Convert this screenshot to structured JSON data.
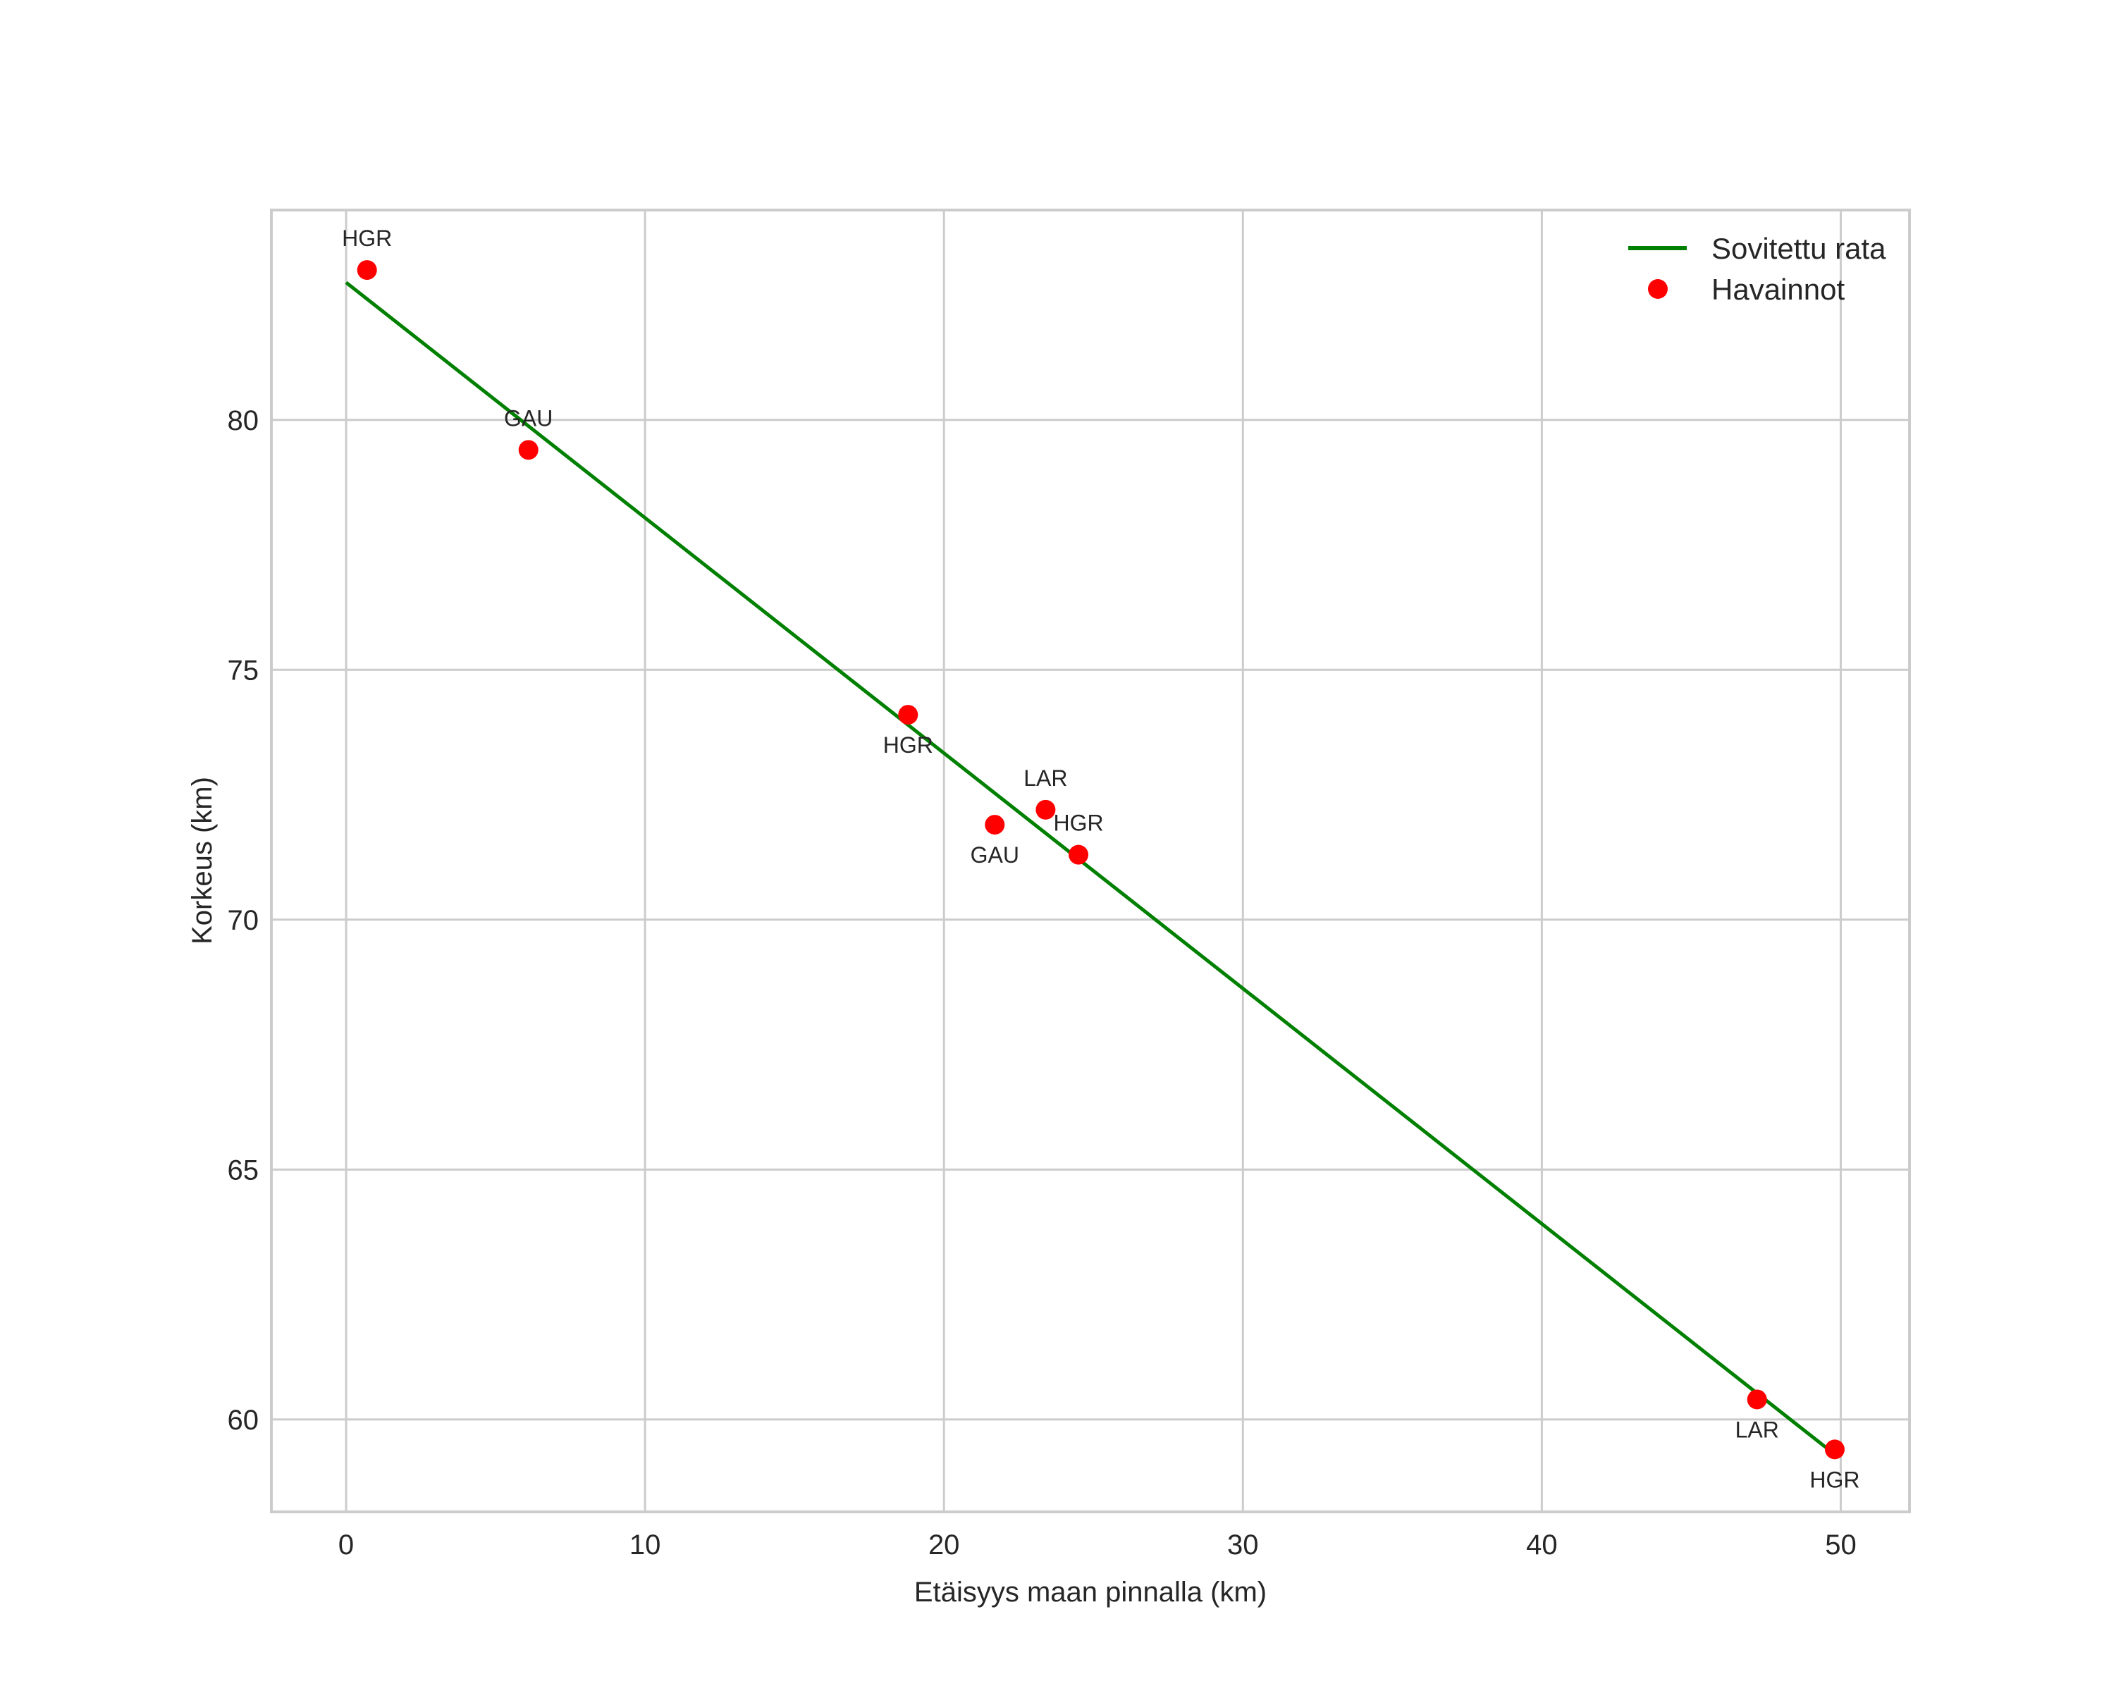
{
  "chart_data": {
    "type": "scatter",
    "title": "",
    "xlabel": "Etäisyys maan pinnalla (km)",
    "ylabel": "Korkeus (km)",
    "xlim": [
      -2.5,
      52.3
    ],
    "ylim": [
      58.15,
      84.2
    ],
    "xticks": [
      0,
      10,
      20,
      30,
      40,
      50
    ],
    "yticks": [
      60,
      65,
      70,
      75,
      80
    ],
    "grid": true,
    "legend_position": "upper right",
    "series": [
      {
        "name": "Sovitettu rata",
        "kind": "line",
        "color": "#008000",
        "x": [
          0,
          49.8
        ],
        "y": [
          82.75,
          59.3
        ]
      },
      {
        "name": "Havainnot",
        "kind": "scatter",
        "color": "#ff0000",
        "points": [
          {
            "x": 0.7,
            "y": 83.0,
            "label": "HGR",
            "label_pos": "above"
          },
          {
            "x": 6.1,
            "y": 79.4,
            "label": "GAU",
            "label_pos": "above"
          },
          {
            "x": 18.8,
            "y": 74.1,
            "label": "HGR",
            "label_pos": "below"
          },
          {
            "x": 21.7,
            "y": 71.9,
            "label": "GAU",
            "label_pos": "below"
          },
          {
            "x": 23.4,
            "y": 72.2,
            "label": "LAR",
            "label_pos": "above"
          },
          {
            "x": 24.5,
            "y": 71.3,
            "label": "HGR",
            "label_pos": "above"
          },
          {
            "x": 47.2,
            "y": 60.4,
            "label": "LAR",
            "label_pos": "below"
          },
          {
            "x": 49.8,
            "y": 59.4,
            "label": "HGR",
            "label_pos": "below"
          }
        ]
      }
    ]
  },
  "legend": {
    "items": [
      {
        "label": "Sovitettu rata",
        "marker": "line",
        "color": "#008000"
      },
      {
        "label": "Havainnot",
        "marker": "dot",
        "color": "#ff0000"
      }
    ]
  },
  "axes": {
    "x_label": "Etäisyys maan pinnalla (km)",
    "y_label": "Korkeus (km)"
  }
}
